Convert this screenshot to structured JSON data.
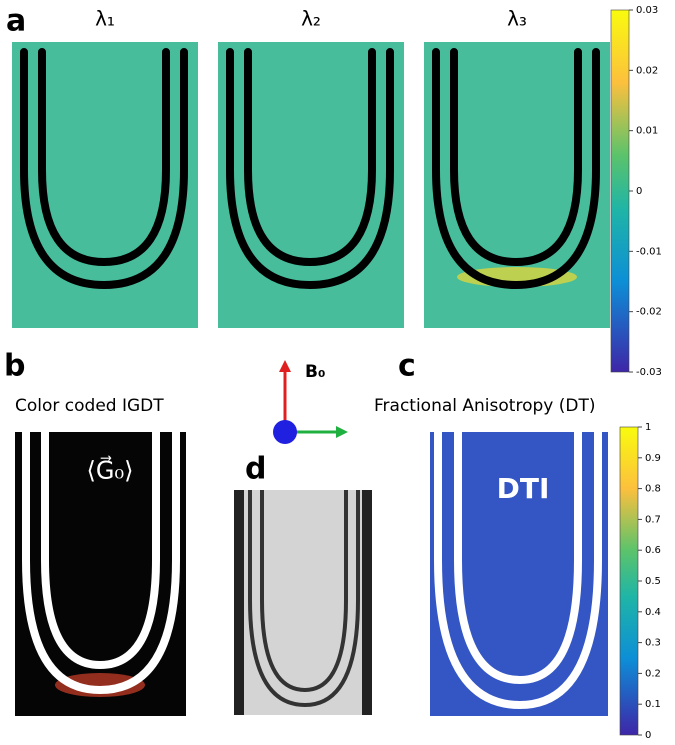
{
  "panels": {
    "a": {
      "label": "a",
      "titles": [
        "λ₁",
        "λ₂",
        "λ₃"
      ],
      "colorbar": {
        "lim": [
          -0.03,
          0.03
        ],
        "ticks": [
          0.03,
          0.02,
          0.01,
          0,
          -0.01,
          -0.02,
          -0.03
        ]
      }
    },
    "b": {
      "label": "b",
      "title": "Color coded IGDT",
      "annotation": "⟨G⃗₀⟩"
    },
    "field": {
      "label": "B₀"
    },
    "c": {
      "label": "c",
      "title": "Fractional Anisotropy (DT)",
      "inset": "DTI",
      "colorbar": {
        "lim": [
          0,
          1
        ],
        "ticks": [
          0,
          0.1,
          0.2,
          0.3,
          0.4,
          0.5,
          0.6,
          0.7,
          0.8,
          0.9,
          1
        ]
      }
    },
    "d": {
      "label": "d"
    }
  }
}
